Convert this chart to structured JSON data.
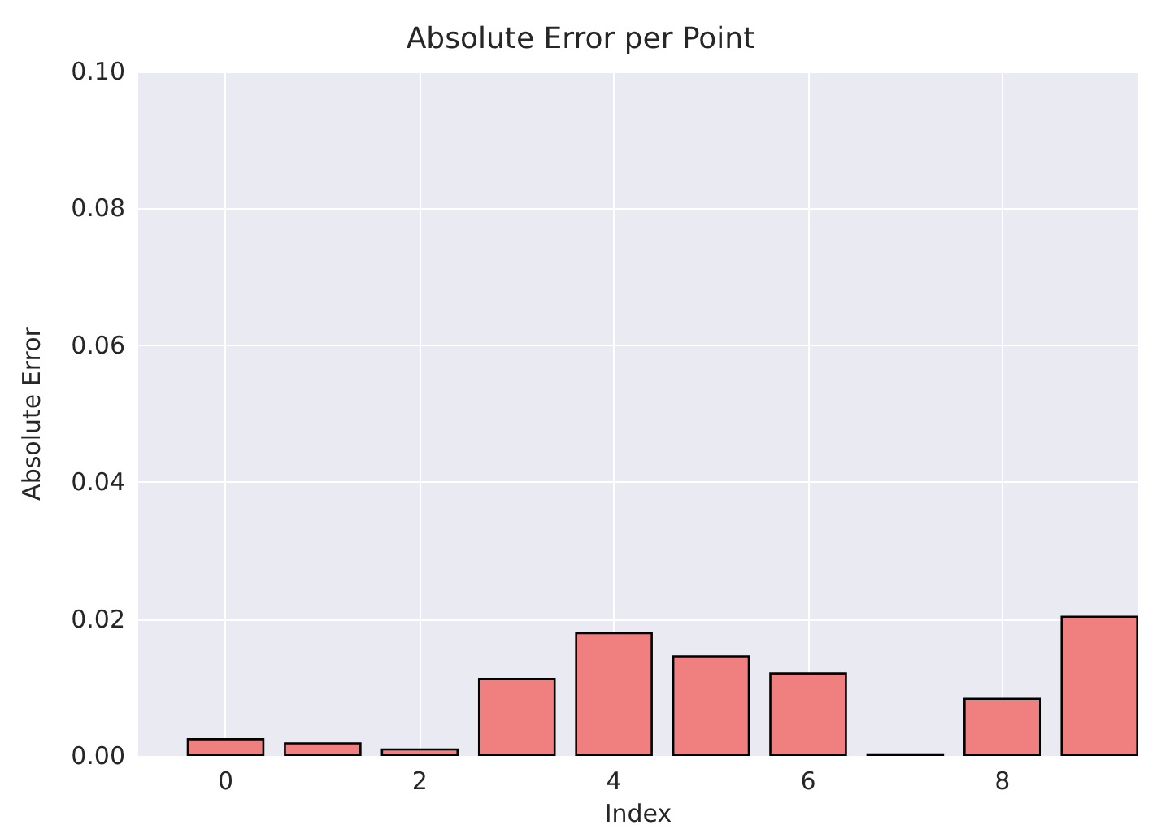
{
  "chart_data": {
    "type": "bar",
    "title": "Absolute Error per Point",
    "xlabel": "Index",
    "ylabel": "Absolute Error",
    "x": [
      0,
      1,
      2,
      3,
      4,
      5,
      6,
      7,
      8,
      9
    ],
    "values": [
      0.0026,
      0.002,
      0.0011,
      0.0114,
      0.0181,
      0.0147,
      0.0122,
      0.0004,
      0.0085,
      0.0205
    ],
    "color": "#f08080",
    "xlim": [
      -0.9,
      9.4
    ],
    "xticks": [
      0,
      2,
      4,
      6,
      8
    ],
    "ylim": [
      0,
      0.1
    ],
    "yticks": [
      {
        "value": 0,
        "label": "0.00"
      },
      {
        "value": 0.02,
        "label": "0.02"
      },
      {
        "value": 0.04,
        "label": "0.04"
      },
      {
        "value": 0.06,
        "label": "0.06"
      },
      {
        "value": 0.08,
        "label": "0.08"
      },
      {
        "value": 0.1,
        "label": "0.10"
      }
    ],
    "grid": true
  }
}
